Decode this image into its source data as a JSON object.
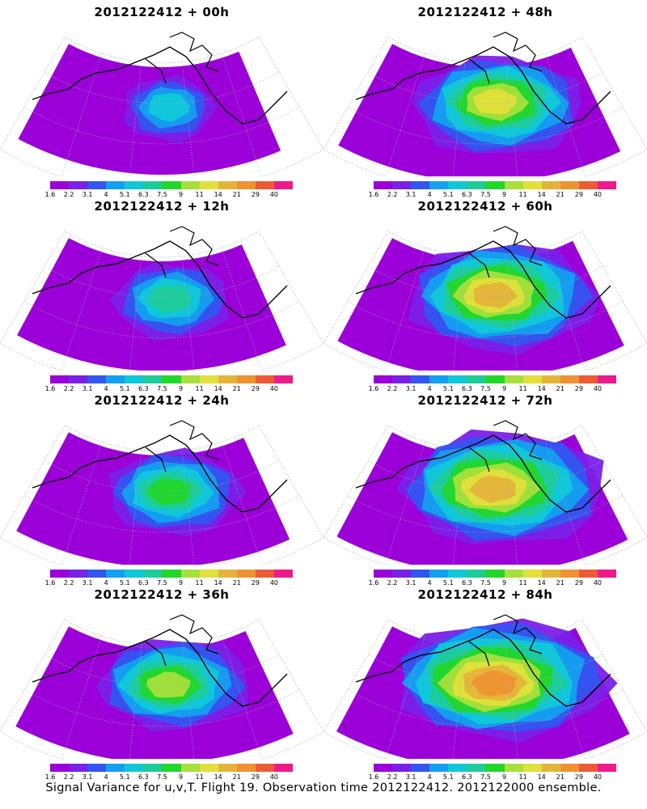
{
  "caption": "Signal Variance for u,v,T. Flight 19. Observation time 2012122412. 2012122000 ensemble.",
  "colorbar": {
    "labels": [
      "1.6",
      "2.2",
      "3.1",
      "4",
      "5.1",
      "6.3",
      "7.5",
      "9",
      "11",
      "14",
      "21",
      "29",
      "40"
    ],
    "colors": [
      "#9b00d9",
      "#7a20e8",
      "#3355f0",
      "#14a0f0",
      "#10c8d8",
      "#1ecc9a",
      "#22d62a",
      "#a6e03c",
      "#e2e03a",
      "#e4b43a",
      "#ee9232",
      "#ee5a36",
      "#ee1a8c"
    ]
  },
  "panels": [
    {
      "title": "2012122412 + 00h",
      "level": 0.15
    },
    {
      "title": "2012122412 + 48h",
      "level": 0.6
    },
    {
      "title": "2012122412 + 12h",
      "level": 0.3
    },
    {
      "title": "2012122412 + 60h",
      "level": 0.7
    },
    {
      "title": "2012122412 + 24h",
      "level": 0.4
    },
    {
      "title": "2012122412 + 72h",
      "level": 0.8
    },
    {
      "title": "2012122412 + 36h",
      "level": 0.5
    },
    {
      "title": "2012122412 + 84h",
      "level": 0.85
    }
  ]
}
